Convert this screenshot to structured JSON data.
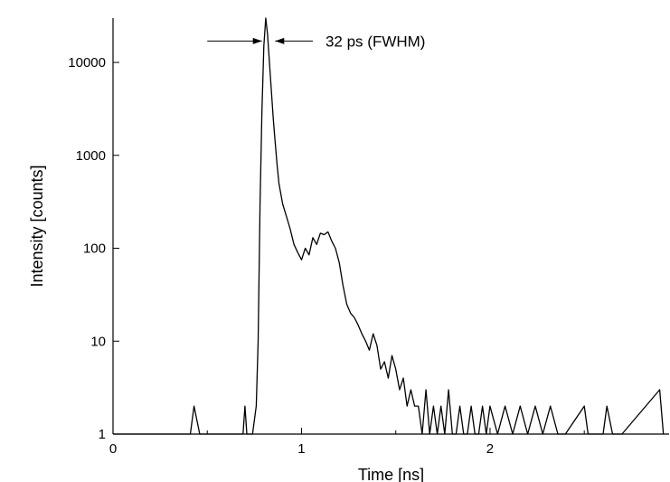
{
  "chart_data": {
    "type": "line",
    "title": "",
    "xlabel": "Time [ns]",
    "ylabel": "Intensity [counts]",
    "xlim": [
      0,
      2.95
    ],
    "ylim": [
      1,
      30000
    ],
    "yscale": "log",
    "grid": false,
    "x_ticks": [
      0,
      1,
      2
    ],
    "x_tick_labels": [
      "0",
      "1",
      "2"
    ],
    "y_ticks": [
      1,
      10,
      100,
      1000,
      10000
    ],
    "y_tick_labels": [
      "1",
      "10",
      "100",
      "1000",
      "10000"
    ],
    "annotation": {
      "text": "32 ps (FWHM)",
      "y": 17000,
      "left_arrow": [
        0.5,
        0.79
      ],
      "right_arrow": [
        1.06,
        0.86
      ]
    },
    "series": [
      {
        "color": "#000000",
        "x": [
          0.0,
          0.41,
          0.43,
          0.46,
          0.69,
          0.7,
          0.71,
          0.74,
          0.76,
          0.77,
          0.78,
          0.79,
          0.8,
          0.81,
          0.82,
          0.83,
          0.84,
          0.85,
          0.86,
          0.87,
          0.88,
          0.9,
          0.92,
          0.94,
          0.96,
          0.98,
          1.0,
          1.02,
          1.04,
          1.06,
          1.08,
          1.1,
          1.12,
          1.14,
          1.16,
          1.18,
          1.2,
          1.22,
          1.24,
          1.26,
          1.28,
          1.3,
          1.32,
          1.34,
          1.36,
          1.38,
          1.4,
          1.42,
          1.44,
          1.46,
          1.48,
          1.5,
          1.52,
          1.54,
          1.56,
          1.58,
          1.6,
          1.62,
          1.64,
          1.66,
          1.68,
          1.7,
          1.72,
          1.74,
          1.76,
          1.78,
          1.8,
          1.82,
          1.84,
          1.86,
          1.88,
          1.9,
          1.92,
          1.94,
          1.96,
          1.98,
          2.0,
          2.04,
          2.08,
          2.12,
          2.16,
          2.2,
          2.24,
          2.28,
          2.32,
          2.36,
          2.4,
          2.5,
          2.52,
          2.6,
          2.62,
          2.65,
          2.7,
          2.9,
          2.92
        ],
        "y": [
          1,
          1,
          2,
          1,
          1,
          2,
          1,
          1,
          2,
          10,
          300,
          3000,
          15000,
          30000,
          20000,
          10000,
          5000,
          2500,
          1400,
          800,
          500,
          300,
          220,
          160,
          110,
          90,
          75,
          100,
          85,
          130,
          110,
          145,
          140,
          150,
          120,
          100,
          70,
          40,
          25,
          20,
          18,
          15,
          12,
          10,
          8,
          12,
          9,
          5,
          6,
          4,
          7,
          5,
          3,
          4,
          2,
          3,
          2,
          2,
          1,
          3,
          1,
          2,
          1,
          2,
          1,
          3,
          1,
          1,
          2,
          1,
          1,
          2,
          1,
          1,
          2,
          1,
          2,
          1,
          2,
          1,
          2,
          1,
          2,
          1,
          2,
          1,
          1,
          2,
          1,
          1,
          2,
          1,
          1,
          3,
          1
        ]
      }
    ]
  }
}
